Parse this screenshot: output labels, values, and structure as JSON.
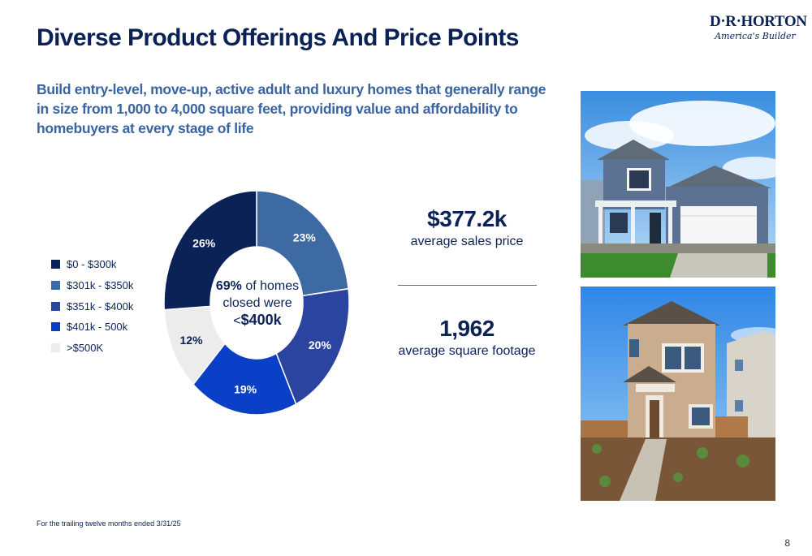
{
  "header": {
    "title": "Diverse Product Offerings And Price Points",
    "subtitle": "Build entry-level, move-up, active adult and luxury homes that generally range in size from 1,000 to 4,000 square feet, providing value and affordability to homebuyers at every stage of life"
  },
  "logo": {
    "text": "D·R·HORTON",
    "tagline": "America's Builder"
  },
  "chart_data": {
    "type": "pie",
    "variant": "donut",
    "categories": [
      "$0 - $300k",
      "$301k - $350k",
      "$351k - $400k",
      "$401k - 500k",
      ">$500K"
    ],
    "values": [
      26,
      23,
      20,
      19,
      12
    ],
    "labels": [
      "26%",
      "23%",
      "20%",
      "19%",
      "12%"
    ],
    "colors": [
      "#0b2257",
      "#3d6aa3",
      "#2a44a0",
      "#0a3fc8",
      "#ececec"
    ],
    "label_colors": [
      "#ffffff",
      "#ffffff",
      "#ffffff",
      "#ffffff",
      "#0b2257"
    ],
    "legend_position": "left",
    "center_text": {
      "pct": "69%",
      "line1_rest": " of homes",
      "line2": "closed were",
      "prefix": "<",
      "value": "$400k"
    }
  },
  "stats": [
    {
      "value": "$377.2k",
      "label": "average sales price"
    },
    {
      "value": "1,962",
      "label": "average square footage"
    }
  ],
  "footnote": "For the trailing twelve months ended 3/31/25",
  "page_number": "8"
}
